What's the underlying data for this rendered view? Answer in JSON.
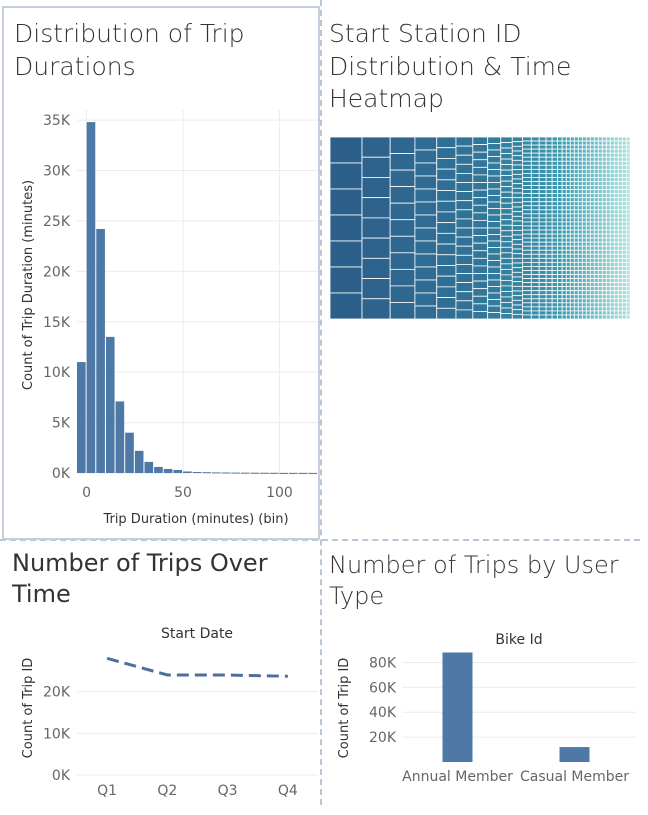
{
  "colors": {
    "bar": "#4e79a7",
    "line": "#4e6f9e",
    "grid": "#ececec",
    "heat_dark": "#2c5f8a",
    "heat_light": "#a6ded8"
  },
  "panel_histogram": {
    "title_line1": "Distribution of Trip",
    "title_line2": "Durations",
    "chart_data": {
      "type": "bar",
      "title": "",
      "xlabel": "Trip Duration (minutes) (bin)",
      "ylabel": "Count of Trip Duration (minutes)",
      "x": [
        -5,
        0,
        5,
        10,
        15,
        20,
        25,
        30,
        35,
        40,
        45,
        50,
        55,
        60,
        65,
        70,
        75,
        80,
        85,
        90,
        95,
        100,
        105,
        110,
        115
      ],
      "values": [
        11000,
        34800,
        24200,
        13500,
        7100,
        4000,
        2200,
        1100,
        600,
        400,
        300,
        150,
        100,
        80,
        60,
        50,
        40,
        30,
        25,
        20,
        15,
        10,
        10,
        8,
        5
      ],
      "xticks": [
        "0",
        "50",
        "100"
      ],
      "yticks": [
        "0K",
        "5K",
        "10K",
        "15K",
        "20K",
        "25K",
        "30K",
        "35K"
      ],
      "ylim": [
        0,
        36000
      ]
    }
  },
  "panel_heatmap": {
    "title_line1": "Start Station ID",
    "title_line2": "Distribution & Time",
    "title_line3": "Heatmap"
  },
  "panel_line": {
    "title_line1": "Number of Trips Over",
    "title_line2": "Time",
    "chart_data": {
      "type": "line",
      "title": "Start Date",
      "ylabel": "Count of Trip ID",
      "categories": [
        "Q1",
        "Q2",
        "Q3",
        "Q4"
      ],
      "values": [
        28000,
        24000,
        24000,
        23700
      ],
      "yticks": [
        "0K",
        "10K",
        "20K"
      ],
      "ylim": [
        0,
        30000
      ]
    }
  },
  "panel_usertype": {
    "title_line1": "Number of Trips by User",
    "title_line2": "Type",
    "chart_data": {
      "type": "bar",
      "title": "Bike Id",
      "ylabel": "Count of Trip ID",
      "categories": [
        "Annual Member",
        "Casual Member"
      ],
      "values": [
        88000,
        12000
      ],
      "yticks": [
        "20K",
        "40K",
        "60K",
        "80K"
      ],
      "ylim": [
        0,
        90000
      ]
    }
  }
}
